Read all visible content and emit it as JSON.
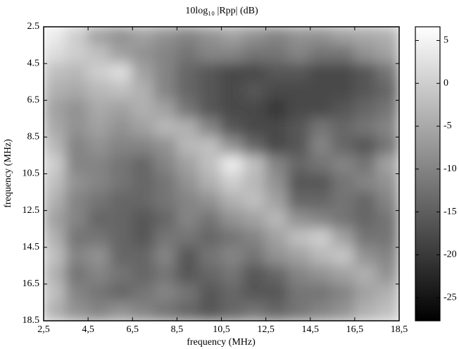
{
  "chart_data": {
    "type": "heatmap",
    "title": "10log₁₀ |Rpp| (dB)",
    "x_label": "frequency (MHz)",
    "y_label": "frequency (MHz)",
    "colormap": "gray",
    "x": [
      3,
      4,
      5,
      6,
      7,
      8,
      9,
      10,
      11,
      12,
      13,
      14,
      15,
      16,
      17,
      18
    ],
    "y": [
      3,
      4,
      5,
      6,
      7,
      8,
      9,
      10,
      11,
      12,
      13,
      14,
      15,
      16,
      17,
      18
    ],
    "z": [
      [
        4,
        0,
        -6,
        -8,
        -6,
        -8,
        -10,
        -8,
        -6,
        -8,
        -10,
        -8,
        -8,
        -6,
        -5,
        -4
      ],
      [
        2,
        0,
        -2,
        -6,
        -8,
        -10,
        -12,
        -10,
        -10,
        -12,
        -12,
        -10,
        -12,
        -12,
        -8,
        -6
      ],
      [
        -2,
        -3,
        0,
        2,
        -6,
        -10,
        -14,
        -16,
        -18,
        -18,
        -16,
        -16,
        -18,
        -18,
        -16,
        -12
      ],
      [
        -4,
        -5,
        -3,
        -2,
        -4,
        -10,
        -14,
        -16,
        -18,
        -16,
        -18,
        -18,
        -18,
        -18,
        -16,
        -14
      ],
      [
        -6,
        -8,
        -5,
        -6,
        -4,
        -6,
        -12,
        -16,
        -18,
        -18,
        -20,
        -18,
        -18,
        -16,
        -14,
        -12
      ],
      [
        -5,
        -8,
        -6,
        -8,
        -6,
        -3,
        -4,
        -10,
        -16,
        -18,
        -18,
        -16,
        -12,
        -14,
        -12,
        -10
      ],
      [
        -3,
        -10,
        -8,
        -10,
        -10,
        -8,
        -3,
        -2,
        -8,
        -14,
        -18,
        -16,
        -10,
        -14,
        -16,
        -12
      ],
      [
        0,
        -10,
        -10,
        -12,
        -14,
        -10,
        -6,
        -2,
        4,
        -2,
        -10,
        -14,
        -12,
        -10,
        -12,
        -6
      ],
      [
        -2,
        -8,
        -10,
        -12,
        -14,
        -12,
        -8,
        -4,
        0,
        -3,
        -8,
        -16,
        -16,
        -12,
        -10,
        -8
      ],
      [
        -4,
        -10,
        -12,
        -14,
        -14,
        -12,
        -10,
        -8,
        -4,
        -2,
        -6,
        -14,
        -14,
        -12,
        -14,
        -10
      ],
      [
        -6,
        -10,
        -14,
        -14,
        -16,
        -14,
        -10,
        -12,
        -8,
        -6,
        -3,
        -8,
        -10,
        -12,
        -14,
        -12
      ],
      [
        -4,
        -12,
        -12,
        -14,
        -16,
        -12,
        -12,
        -14,
        -12,
        -10,
        -6,
        -2,
        0,
        -6,
        -12,
        -12
      ],
      [
        -2,
        -10,
        -8,
        -14,
        -14,
        -10,
        -16,
        -12,
        -10,
        -12,
        -8,
        -6,
        -3,
        -1,
        -8,
        -10
      ],
      [
        -4,
        -12,
        -10,
        -12,
        -14,
        -12,
        -16,
        -14,
        -12,
        -16,
        -14,
        -10,
        -8,
        -6,
        -4,
        -8
      ],
      [
        -2,
        -10,
        -12,
        -14,
        -12,
        -10,
        -12,
        -16,
        -14,
        -16,
        -16,
        -12,
        -12,
        -10,
        -6,
        -4
      ],
      [
        -4,
        -8,
        -10,
        -8,
        -10,
        -12,
        -14,
        -16,
        -14,
        -12,
        -14,
        -12,
        -10,
        -8,
        -4,
        -2
      ]
    ],
    "xlim": [
      2.5,
      18.5
    ],
    "xticks": [
      {
        "value": 2.5,
        "label": "2,5"
      },
      {
        "value": 4.5,
        "label": "4,5"
      },
      {
        "value": 6.5,
        "label": "6,5"
      },
      {
        "value": 8.5,
        "label": "8,5"
      },
      {
        "value": 10.5,
        "label": "10,5"
      },
      {
        "value": 12.5,
        "label": "12,5"
      },
      {
        "value": 14.5,
        "label": "14,5"
      },
      {
        "value": 16.5,
        "label": "16,5"
      },
      {
        "value": 18.5,
        "label": "18,5"
      }
    ],
    "ylim": [
      2.5,
      18.5
    ],
    "y_inverted": true,
    "yticks": [
      2.5,
      4.5,
      6.5,
      8.5,
      10.5,
      12.5,
      14.5,
      16.5,
      18.5
    ],
    "clim": [
      -27.7,
      6.6
    ],
    "cticks": [
      5,
      0,
      -5,
      -10,
      -15,
      -20,
      -25
    ]
  }
}
